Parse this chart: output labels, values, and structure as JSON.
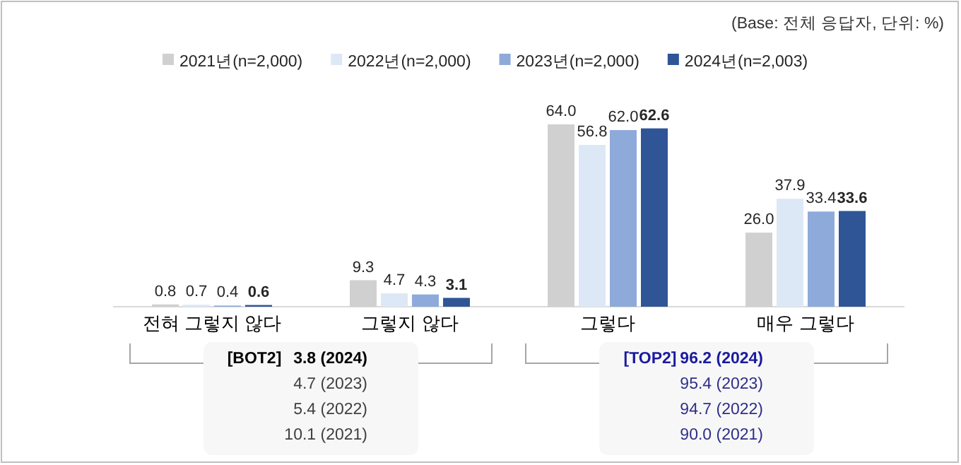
{
  "chart_data": {
    "type": "bar",
    "categories": [
      "전혀 그렇지 않다",
      "그렇지 않다",
      "그렇다",
      "매우 그렇다"
    ],
    "series": [
      {
        "name": "2021년(n=2,000)",
        "color": "#d0d0d0",
        "values": [
          0.8,
          9.3,
          64.0,
          26.0
        ],
        "value_labels": [
          "0.8",
          "9.3",
          "64.0",
          "26.0"
        ]
      },
      {
        "name": "2022년(n=2,000)",
        "color": "#dde8f6",
        "values": [
          0.7,
          4.7,
          56.8,
          37.9
        ],
        "value_labels": [
          "0.7",
          "4.7",
          "56.8",
          "37.9"
        ]
      },
      {
        "name": "2023년(n=2,000)",
        "color": "#8eaadb",
        "values": [
          0.4,
          4.3,
          62.0,
          33.4
        ],
        "value_labels": [
          "0.4",
          "4.3",
          "62.0",
          "33.4"
        ]
      },
      {
        "name": "2024년(n=2,003)",
        "color": "#2f5597",
        "values": [
          0.6,
          3.1,
          62.6,
          33.6
        ],
        "value_labels": [
          "0.6",
          "3.1",
          "62.6",
          "33.6"
        ]
      }
    ],
    "legend": "top",
    "annotations": [
      "(Base: 전체 응답자, 단위: %)",
      "[BOT2]",
      "3.8 (2024)",
      "4.7 (2023)",
      "5.4 (2022)",
      "10.1 (2021)",
      "[TOP2]",
      "96.2 (2024)",
      "95.4 (2023)",
      "94.7 (2022)",
      "90.0 (2021)"
    ]
  }
}
